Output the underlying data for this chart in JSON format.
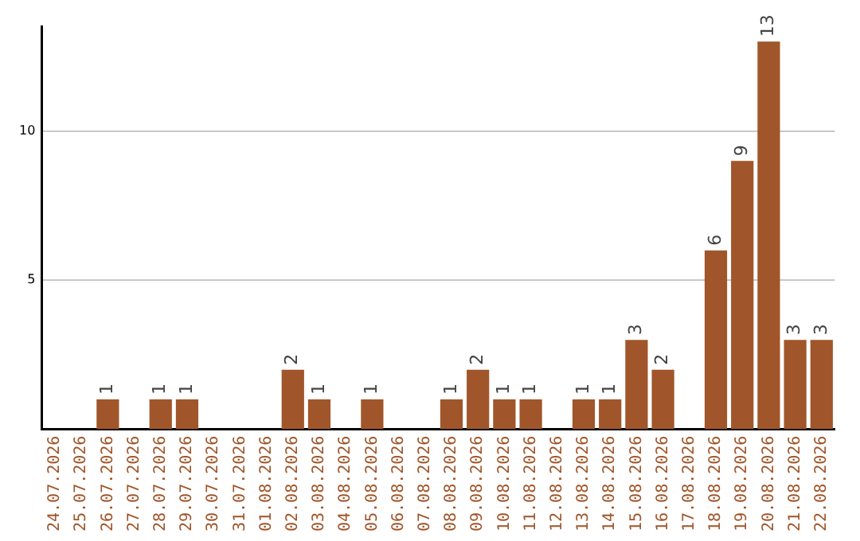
{
  "chart_data": {
    "type": "bar",
    "categories": [
      "24.07.2026",
      "25.07.2026",
      "26.07.2026",
      "27.07.2026",
      "28.07.2026",
      "29.07.2026",
      "30.07.2026",
      "31.07.2026",
      "01.08.2026",
      "02.08.2026",
      "03.08.2026",
      "04.08.2026",
      "05.08.2026",
      "06.08.2026",
      "07.08.2026",
      "08.08.2026",
      "09.08.2026",
      "10.08.2026",
      "11.08.2026",
      "12.08.2026",
      "13.08.2026",
      "14.08.2026",
      "15.08.2026",
      "16.08.2026",
      "17.08.2026",
      "18.08.2026",
      "19.08.2026",
      "20.08.2026",
      "21.08.2026",
      "22.08.2026"
    ],
    "values": [
      0,
      0,
      1,
      0,
      1,
      1,
      0,
      0,
      0,
      2,
      1,
      0,
      1,
      0,
      0,
      1,
      2,
      1,
      1,
      0,
      1,
      1,
      3,
      2,
      0,
      6,
      9,
      13,
      3,
      3
    ],
    "value_labels": [
      null,
      null,
      "1",
      null,
      "1",
      "1",
      null,
      null,
      null,
      "2",
      "1",
      null,
      "1",
      null,
      null,
      "1",
      "2",
      "1",
      "1",
      null,
      "1",
      "1",
      "3",
      "2",
      null,
      "6",
      "9",
      "13",
      "3",
      "3"
    ],
    "color": "#a0562a",
    "ylim": [
      0,
      13.5
    ],
    "yticks": [
      5,
      10
    ],
    "grid": "y",
    "legend": false
  }
}
